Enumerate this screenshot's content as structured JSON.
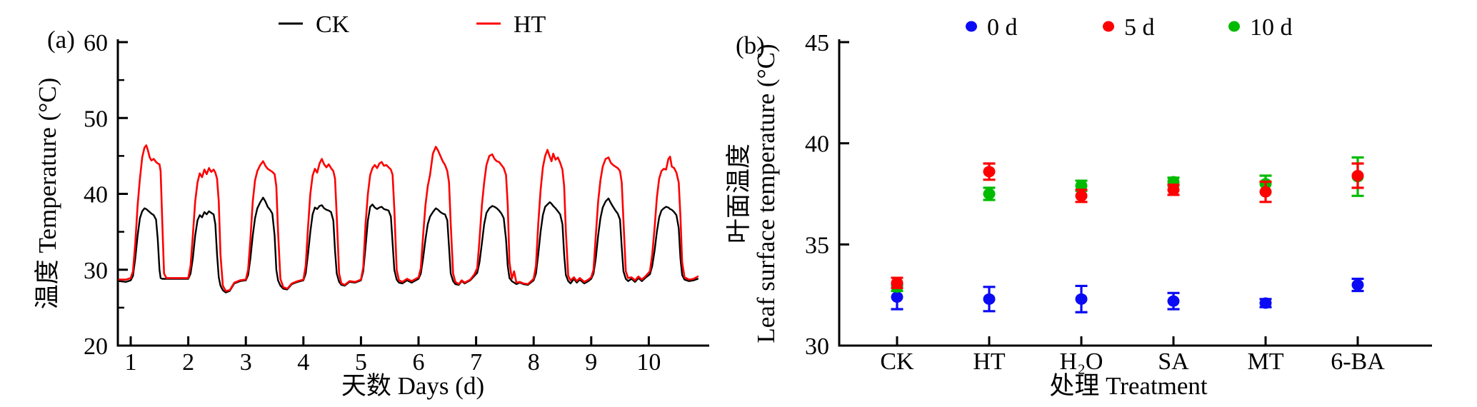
{
  "figure": {
    "background": "#ffffff",
    "panel_a": {
      "tag": "(a)",
      "xlabel": "天数 Days (d)",
      "ylabel": "温度 Temperature (°C)",
      "legend": [
        {
          "label": "CK",
          "color": "#000000"
        },
        {
          "label": "HT",
          "color": "#fd0000"
        }
      ]
    },
    "panel_b": {
      "tag": "(b)",
      "xlabel": "处理 Treatment",
      "ylabel_line1": "叶面温度",
      "ylabel_line2": "Leaf surface temperature (°C)",
      "legend": [
        {
          "label": "0 d",
          "color": "#0a0af5"
        },
        {
          "label": "5 d",
          "color": "#fd0000"
        },
        {
          "label": "10 d",
          "color": "#00bb00"
        }
      ]
    }
  },
  "chart_data": [
    {
      "type": "line",
      "panel": "a",
      "xlabel": "天数 Days (d)",
      "ylabel": "温度 Temperature (°C)",
      "xlim": [
        0.8,
        10.87
      ],
      "ylim": [
        20,
        60
      ],
      "xticks": [
        1,
        2,
        3,
        4,
        5,
        6,
        7,
        8,
        9,
        10
      ],
      "yticks": [
        20,
        30,
        40,
        50,
        60
      ],
      "yticks_minor": [
        25,
        35,
        45,
        55
      ],
      "grid": false,
      "legend_position": "top",
      "columns": [
        "day",
        "CK",
        "HT"
      ],
      "series": [
        {
          "name": "CK",
          "color": "#000000"
        },
        {
          "name": "HT",
          "color": "#fd0000"
        }
      ],
      "points": [
        [
          0.8,
          28.5,
          28.7
        ],
        [
          0.92,
          28.4,
          28.7
        ],
        [
          1.0,
          28.6,
          28.9
        ],
        [
          1.04,
          29.2,
          29.8
        ],
        [
          1.08,
          31.5,
          33.5
        ],
        [
          1.12,
          34.5,
          38.5
        ],
        [
          1.16,
          36.8,
          42.0
        ],
        [
          1.2,
          37.7,
          44.8
        ],
        [
          1.24,
          38.1,
          46.1
        ],
        [
          1.27,
          38.0,
          46.4
        ],
        [
          1.3,
          37.8,
          45.7
        ],
        [
          1.33,
          37.6,
          44.8
        ],
        [
          1.36,
          37.4,
          44.4
        ],
        [
          1.4,
          37.2,
          44.6
        ],
        [
          1.44,
          36.6,
          44.2
        ],
        [
          1.47,
          34.0,
          44.0
        ],
        [
          1.5,
          30.0,
          43.9
        ],
        [
          1.52,
          28.9,
          43.0
        ],
        [
          1.55,
          28.8,
          36.0
        ],
        [
          1.58,
          28.8,
          29.5
        ],
        [
          1.62,
          28.8,
          28.9
        ],
        [
          1.8,
          28.8,
          28.9
        ],
        [
          2.0,
          28.8,
          28.9
        ],
        [
          2.04,
          29.5,
          30.5
        ],
        [
          2.08,
          31.5,
          34.5
        ],
        [
          2.12,
          34.5,
          39.0
        ],
        [
          2.16,
          36.5,
          41.5
        ],
        [
          2.2,
          37.2,
          42.7
        ],
        [
          2.24,
          36.9,
          42.2
        ],
        [
          2.28,
          37.6,
          43.2
        ],
        [
          2.32,
          37.3,
          42.6
        ],
        [
          2.36,
          37.7,
          43.4
        ],
        [
          2.4,
          37.5,
          42.9
        ],
        [
          2.44,
          37.3,
          43.2
        ],
        [
          2.47,
          36.0,
          42.8
        ],
        [
          2.5,
          32.0,
          42.0
        ],
        [
          2.53,
          29.0,
          39.0
        ],
        [
          2.56,
          27.9,
          32.0
        ],
        [
          2.6,
          27.3,
          27.9
        ],
        [
          2.65,
          27.0,
          27.2
        ],
        [
          2.72,
          27.2,
          27.3
        ],
        [
          2.8,
          28.2,
          28.3
        ],
        [
          2.9,
          28.5,
          28.6
        ],
        [
          3.0,
          28.6,
          28.7
        ],
        [
          3.04,
          29.3,
          30.0
        ],
        [
          3.08,
          31.5,
          34.0
        ],
        [
          3.12,
          34.5,
          39.0
        ],
        [
          3.16,
          36.8,
          41.8
        ],
        [
          3.2,
          38.1,
          43.0
        ],
        [
          3.25,
          38.9,
          43.8
        ],
        [
          3.3,
          39.5,
          44.3
        ],
        [
          3.34,
          39.0,
          43.7
        ],
        [
          3.38,
          38.3,
          43.3
        ],
        [
          3.42,
          37.9,
          43.1
        ],
        [
          3.46,
          37.4,
          42.9
        ],
        [
          3.5,
          34.5,
          42.6
        ],
        [
          3.53,
          30.0,
          41.0
        ],
        [
          3.56,
          28.6,
          35.0
        ],
        [
          3.6,
          27.9,
          28.8
        ],
        [
          3.65,
          27.5,
          27.7
        ],
        [
          3.72,
          27.4,
          27.5
        ],
        [
          3.8,
          28.1,
          28.2
        ],
        [
          3.9,
          28.4,
          28.5
        ],
        [
          4.0,
          28.6,
          28.7
        ],
        [
          4.04,
          29.5,
          30.5
        ],
        [
          4.08,
          32.0,
          35.5
        ],
        [
          4.12,
          35.0,
          40.0
        ],
        [
          4.16,
          37.3,
          42.4
        ],
        [
          4.2,
          38.2,
          43.3
        ],
        [
          4.24,
          38.0,
          42.8
        ],
        [
          4.28,
          38.4,
          44.0
        ],
        [
          4.32,
          38.5,
          44.6
        ],
        [
          4.36,
          38.1,
          43.9
        ],
        [
          4.4,
          37.9,
          43.5
        ],
        [
          4.44,
          37.8,
          43.9
        ],
        [
          4.48,
          37.6,
          43.4
        ],
        [
          4.52,
          36.5,
          43.0
        ],
        [
          4.55,
          32.5,
          42.0
        ],
        [
          4.58,
          29.5,
          37.0
        ],
        [
          4.62,
          28.4,
          29.5
        ],
        [
          4.66,
          28.0,
          28.2
        ],
        [
          4.72,
          27.9,
          28.0
        ],
        [
          4.8,
          28.4,
          28.5
        ],
        [
          4.9,
          28.3,
          28.4
        ],
        [
          5.0,
          28.6,
          28.7
        ],
        [
          5.04,
          29.8,
          30.3
        ],
        [
          5.08,
          33.0,
          36.0
        ],
        [
          5.12,
          36.5,
          40.0
        ],
        [
          5.16,
          38.3,
          42.5
        ],
        [
          5.2,
          38.6,
          43.4
        ],
        [
          5.24,
          38.2,
          43.8
        ],
        [
          5.28,
          38.0,
          43.4
        ],
        [
          5.32,
          38.2,
          44.0
        ],
        [
          5.36,
          38.3,
          44.2
        ],
        [
          5.4,
          38.0,
          43.7
        ],
        [
          5.44,
          37.9,
          43.8
        ],
        [
          5.48,
          37.8,
          43.5
        ],
        [
          5.52,
          37.0,
          43.2
        ],
        [
          5.55,
          33.5,
          42.5
        ],
        [
          5.58,
          30.0,
          38.0
        ],
        [
          5.62,
          28.7,
          30.0
        ],
        [
          5.66,
          28.3,
          28.6
        ],
        [
          5.72,
          28.2,
          28.4
        ],
        [
          5.8,
          28.6,
          28.8
        ],
        [
          5.88,
          28.3,
          28.5
        ],
        [
          6.0,
          28.8,
          29.0
        ],
        [
          6.04,
          29.5,
          30.2
        ],
        [
          6.08,
          31.5,
          34.5
        ],
        [
          6.12,
          34.0,
          38.5
        ],
        [
          6.16,
          36.0,
          41.0
        ],
        [
          6.2,
          37.0,
          42.5
        ],
        [
          6.25,
          37.6,
          45.3
        ],
        [
          6.3,
          38.1,
          46.2
        ],
        [
          6.34,
          37.9,
          45.7
        ],
        [
          6.38,
          37.6,
          45.0
        ],
        [
          6.42,
          37.4,
          44.3
        ],
        [
          6.46,
          37.3,
          43.8
        ],
        [
          6.5,
          36.5,
          43.0
        ],
        [
          6.53,
          33.0,
          41.5
        ],
        [
          6.56,
          29.5,
          36.0
        ],
        [
          6.6,
          28.5,
          29.5
        ],
        [
          6.64,
          28.1,
          28.4
        ],
        [
          6.7,
          28.0,
          28.1
        ],
        [
          6.75,
          28.5,
          28.6
        ],
        [
          6.8,
          28.2,
          28.3
        ],
        [
          6.9,
          28.6,
          28.7
        ],
        [
          6.97,
          29.2,
          29.4
        ],
        [
          7.02,
          29.6,
          30.2
        ],
        [
          7.06,
          31.0,
          34.0
        ],
        [
          7.1,
          33.5,
          38.5
        ],
        [
          7.14,
          36.0,
          41.5
        ],
        [
          7.18,
          37.5,
          43.8
        ],
        [
          7.23,
          38.1,
          45.0
        ],
        [
          7.28,
          38.4,
          45.2
        ],
        [
          7.32,
          38.3,
          44.6
        ],
        [
          7.36,
          38.1,
          44.3
        ],
        [
          7.4,
          37.8,
          44.2
        ],
        [
          7.44,
          37.4,
          43.8
        ],
        [
          7.48,
          36.8,
          43.4
        ],
        [
          7.52,
          34.0,
          42.5
        ],
        [
          7.55,
          30.5,
          38.5
        ],
        [
          7.58,
          28.9,
          31.0
        ],
        [
          7.62,
          28.5,
          28.8
        ],
        [
          7.66,
          28.3,
          29.8
        ],
        [
          7.7,
          28.1,
          28.3
        ],
        [
          7.76,
          28.3,
          28.4
        ],
        [
          7.82,
          28.1,
          28.2
        ],
        [
          7.9,
          28.0,
          28.1
        ],
        [
          8.0,
          28.6,
          28.8
        ],
        [
          8.04,
          29.5,
          30.5
        ],
        [
          8.08,
          32.0,
          36.0
        ],
        [
          8.12,
          35.0,
          40.5
        ],
        [
          8.16,
          37.2,
          43.5
        ],
        [
          8.2,
          38.3,
          45.0
        ],
        [
          8.24,
          38.6,
          45.8
        ],
        [
          8.28,
          38.9,
          44.9
        ],
        [
          8.31,
          38.7,
          44.3
        ],
        [
          8.34,
          38.4,
          45.3
        ],
        [
          8.38,
          38.1,
          44.5
        ],
        [
          8.42,
          37.7,
          44.8
        ],
        [
          8.46,
          37.3,
          44.1
        ],
        [
          8.5,
          36.0,
          43.2
        ],
        [
          8.53,
          32.0,
          41.0
        ],
        [
          8.56,
          29.3,
          35.0
        ],
        [
          8.6,
          28.5,
          29.2
        ],
        [
          8.64,
          28.2,
          28.6
        ],
        [
          8.7,
          28.8,
          29.0
        ],
        [
          8.75,
          28.3,
          28.5
        ],
        [
          8.8,
          28.7,
          28.9
        ],
        [
          8.88,
          28.2,
          28.4
        ],
        [
          8.95,
          28.5,
          28.7
        ],
        [
          9.0,
          28.8,
          29.0
        ],
        [
          9.04,
          29.5,
          30.0
        ],
        [
          9.08,
          31.5,
          34.5
        ],
        [
          9.12,
          34.5,
          39.0
        ],
        [
          9.16,
          36.8,
          41.8
        ],
        [
          9.2,
          38.2,
          43.6
        ],
        [
          9.25,
          39.0,
          44.6
        ],
        [
          9.3,
          39.4,
          44.8
        ],
        [
          9.34,
          38.8,
          44.1
        ],
        [
          9.38,
          38.3,
          43.8
        ],
        [
          9.42,
          37.8,
          43.6
        ],
        [
          9.46,
          37.4,
          43.4
        ],
        [
          9.5,
          36.6,
          43.0
        ],
        [
          9.53,
          33.0,
          41.5
        ],
        [
          9.56,
          29.8,
          36.5
        ],
        [
          9.6,
          28.8,
          29.8
        ],
        [
          9.64,
          28.5,
          28.9
        ],
        [
          9.7,
          28.8,
          29.0
        ],
        [
          9.76,
          28.4,
          28.6
        ],
        [
          9.82,
          28.9,
          29.1
        ],
        [
          9.88,
          28.5,
          28.7
        ],
        [
          9.95,
          29.0,
          29.2
        ],
        [
          10.02,
          29.4,
          29.8
        ],
        [
          10.06,
          30.5,
          32.0
        ],
        [
          10.1,
          32.5,
          35.5
        ],
        [
          10.14,
          35.0,
          39.5
        ],
        [
          10.18,
          36.9,
          42.0
        ],
        [
          10.22,
          37.8,
          43.0
        ],
        [
          10.26,
          38.1,
          43.3
        ],
        [
          10.3,
          38.3,
          43.2
        ],
        [
          10.34,
          38.2,
          44.6
        ],
        [
          10.37,
          38.0,
          44.9
        ],
        [
          10.4,
          37.9,
          43.6
        ],
        [
          10.44,
          37.6,
          43.4
        ],
        [
          10.48,
          37.2,
          42.8
        ],
        [
          10.52,
          35.5,
          41.5
        ],
        [
          10.55,
          31.5,
          37.0
        ],
        [
          10.58,
          29.3,
          31.0
        ],
        [
          10.62,
          28.7,
          29.0
        ],
        [
          10.7,
          28.5,
          28.7
        ],
        [
          10.78,
          28.6,
          28.8
        ],
        [
          10.85,
          28.8,
          29.1
        ]
      ]
    },
    {
      "type": "scatter",
      "panel": "b",
      "xlabel": "处理 Treatment",
      "ylabel": "叶面温度 Leaf surface temperature (°C)",
      "ylim": [
        30,
        45
      ],
      "yticks": [
        30,
        35,
        40,
        45
      ],
      "grid": false,
      "legend_position": "top",
      "categories": [
        "CK",
        "HT",
        "H₂O",
        "SA",
        "MT",
        "6-BA"
      ],
      "draw_order": [
        0,
        2,
        1
      ],
      "series": [
        {
          "name": "0 d",
          "color": "#0a0af5",
          "values": [
            32.4,
            32.3,
            32.3,
            32.2,
            32.1,
            33.0
          ],
          "errors": [
            0.6,
            0.6,
            0.65,
            0.4,
            0.2,
            0.3
          ]
        },
        {
          "name": "5 d",
          "color": "#fd0000",
          "values": [
            33.1,
            38.6,
            37.4,
            37.7,
            37.6,
            38.4
          ],
          "errors": [
            0.25,
            0.4,
            0.3,
            0.25,
            0.5,
            0.6
          ]
        },
        {
          "name": "10 d",
          "color": "#00bb00",
          "values": [
            32.9,
            37.5,
            37.9,
            38.1,
            38.0,
            38.35
          ],
          "errors": [
            0.2,
            0.3,
            0.25,
            0.2,
            0.4,
            0.95
          ]
        }
      ]
    }
  ]
}
